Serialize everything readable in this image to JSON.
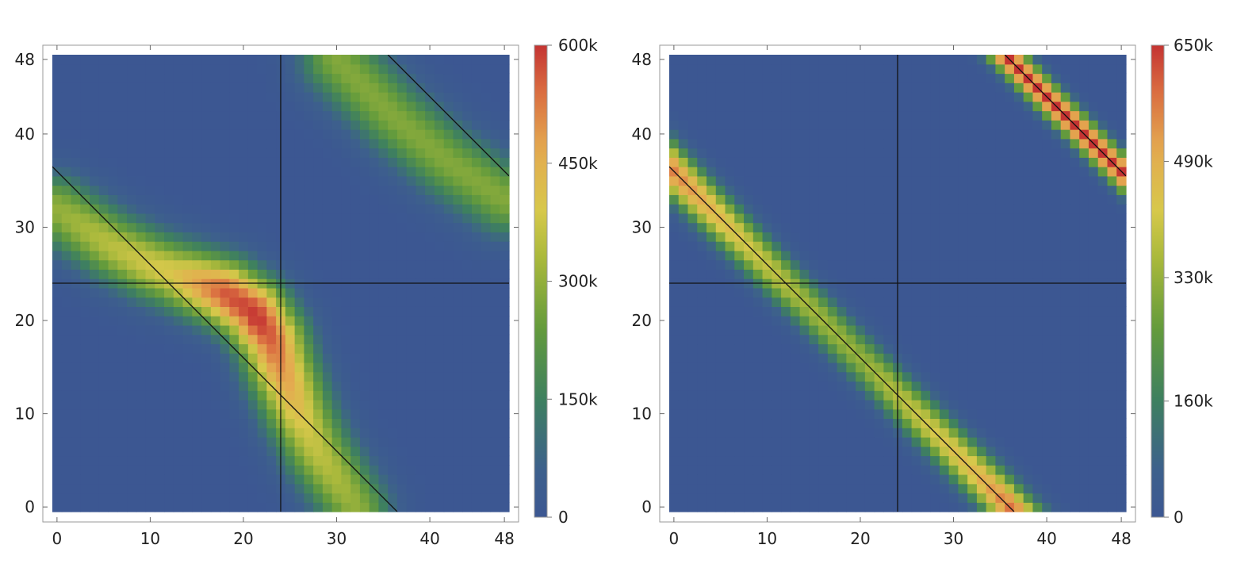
{
  "chart_data": [
    {
      "type": "heatmap",
      "grid_size": 49,
      "x_ticks": [
        "0",
        "10",
        "20",
        "30",
        "40",
        "48"
      ],
      "y_ticks": [
        "0",
        "10",
        "20",
        "30",
        "40",
        "48"
      ],
      "x_tick_values": [
        0,
        10,
        20,
        30,
        40,
        48
      ],
      "y_tick_values": [
        0,
        10,
        20,
        30,
        40,
        48
      ],
      "xlim": [
        0,
        48
      ],
      "ylim": [
        0,
        48
      ],
      "colorbar": {
        "min": 0,
        "max": 600000,
        "ticks": [
          "0",
          "150k",
          "300k",
          "450k",
          "600k"
        ],
        "tick_values": [
          0,
          150000,
          300000,
          450000,
          600000
        ]
      },
      "reference_lines": [
        {
          "kind": "vertical",
          "x": 24
        },
        {
          "kind": "horizontal",
          "y": 24
        },
        {
          "kind": "line",
          "x1": -0.5,
          "y1": 36.5,
          "x2": 36.5,
          "y2": -0.5
        },
        {
          "kind": "line",
          "x1": 35.5,
          "y1": 48.5,
          "x2": 48.5,
          "y2": 35.5
        }
      ],
      "band_path": [
        [
          0,
          32
        ],
        [
          6,
          28
        ],
        [
          10,
          26
        ],
        [
          14,
          24.5
        ],
        [
          18,
          23
        ],
        [
          21,
          21
        ],
        [
          23,
          18
        ],
        [
          24,
          15
        ],
        [
          26,
          10
        ],
        [
          28,
          6
        ],
        [
          30,
          3
        ],
        [
          32,
          0
        ]
      ],
      "band_width": 3.2,
      "band_peak": [
        {
          "t": 0,
          "value": 300000
        },
        {
          "t": 0.3,
          "value": 400000
        },
        {
          "t": 0.42,
          "value": 560000
        },
        {
          "t": 0.52,
          "value": 600000
        },
        {
          "t": 0.62,
          "value": 520000
        },
        {
          "t": 0.8,
          "value": 380000
        },
        {
          "t": 1,
          "value": 300000
        }
      ],
      "band2_path": [
        [
          30,
          48
        ],
        [
          36,
          42
        ],
        [
          42,
          37
        ],
        [
          48,
          33
        ]
      ],
      "band2_width": 3.4,
      "band2_peak_value": 280000
    },
    {
      "type": "heatmap",
      "grid_size": 49,
      "x_ticks": [
        "0",
        "10",
        "20",
        "30",
        "40",
        "48"
      ],
      "y_ticks": [
        "0",
        "10",
        "20",
        "30",
        "40",
        "48"
      ],
      "x_tick_values": [
        0,
        10,
        20,
        30,
        40,
        48
      ],
      "y_tick_values": [
        0,
        10,
        20,
        30,
        40,
        48
      ],
      "xlim": [
        0,
        48
      ],
      "ylim": [
        0,
        48
      ],
      "colorbar": {
        "min": 0,
        "max": 650000,
        "ticks": [
          "0",
          "160k",
          "330k",
          "490k",
          "650k"
        ],
        "tick_values": [
          0,
          160000,
          330000,
          490000,
          650000
        ]
      },
      "reference_lines": [
        {
          "kind": "vertical",
          "x": 24
        },
        {
          "kind": "horizontal",
          "y": 24
        },
        {
          "kind": "line",
          "x1": -0.5,
          "y1": 36.5,
          "x2": 36.5,
          "y2": -0.5
        },
        {
          "kind": "line",
          "x1": 35.5,
          "y1": 48.5,
          "x2": 48.5,
          "y2": 35.5
        }
      ],
      "diag_sum_main": 36,
      "diag_sum_second": 84,
      "band_width_main": 1.9,
      "band_width_second": 1.3,
      "band_peak": [
        {
          "x": 0,
          "value": 560000
        },
        {
          "x": 8,
          "value": 420000
        },
        {
          "x": 14,
          "value": 350000
        },
        {
          "x": 20,
          "value": 330000
        },
        {
          "x": 26,
          "value": 400000
        },
        {
          "x": 32,
          "value": 470000
        },
        {
          "x": 36,
          "value": 580000
        }
      ],
      "band2_peak_value": 650000
    }
  ]
}
